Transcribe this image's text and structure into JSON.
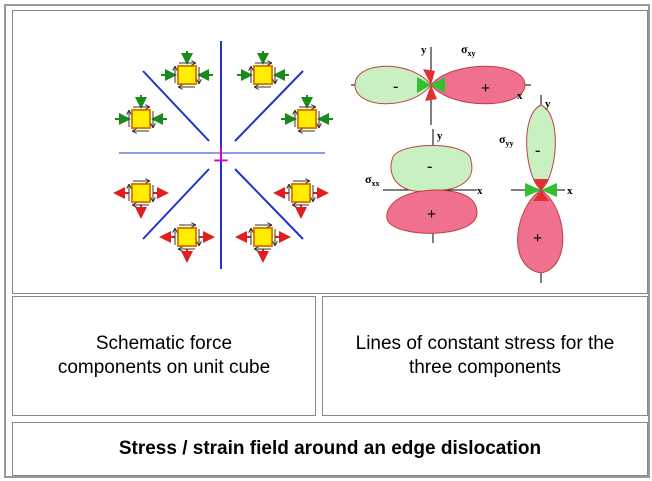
{
  "figure": {
    "dislocation": "⊥",
    "plots": [
      {
        "symbol": "σ",
        "sub": "xy",
        "x": "x",
        "y": "y",
        "neg": "-",
        "pos": "+"
      },
      {
        "symbol": "σ",
        "sub": "xx",
        "x": "x",
        "y": "y",
        "neg": "-",
        "pos": "+"
      },
      {
        "symbol": "σ",
        "sub": "yy",
        "x": "x",
        "y": "y",
        "neg": "-",
        "pos": "+"
      }
    ]
  },
  "captions": [
    "Schematic force components on unit cube",
    "Lines of constant stress for the three components"
  ],
  "title": "Stress / strain field around an edge dislocation"
}
